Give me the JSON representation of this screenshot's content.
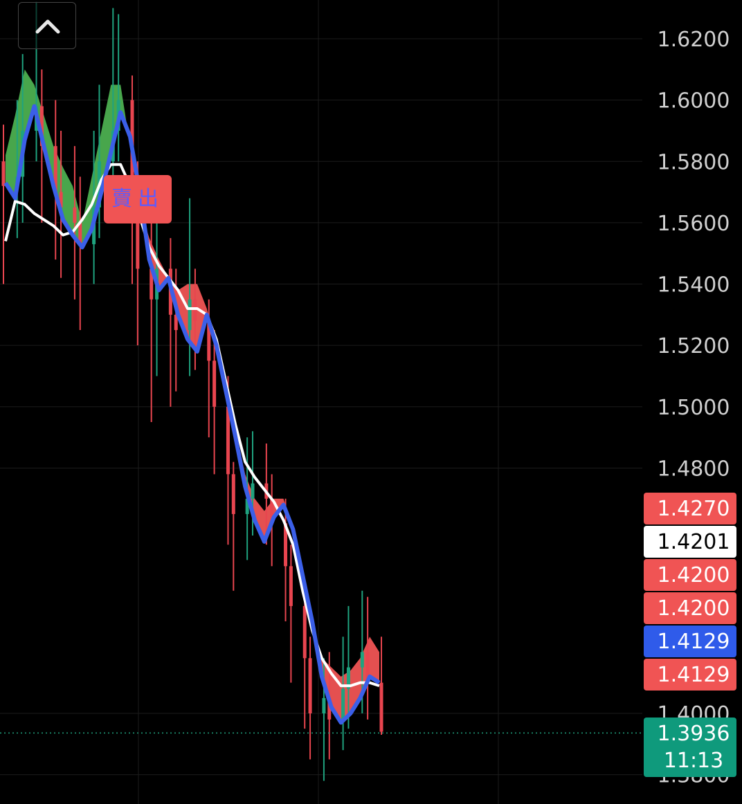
{
  "chart_data": {
    "type": "candlestick",
    "ylim": [
      1.375,
      1.632
    ],
    "y_ticks": [
      "1.6200",
      "1.6000",
      "1.5800",
      "1.5600",
      "1.5400",
      "1.5200",
      "1.5000",
      "1.4800",
      "1.4000",
      "1.3800"
    ],
    "grid": true,
    "signal": {
      "label": "賣出",
      "value": 1.565
    },
    "price_badges": [
      {
        "value": "1.4270",
        "bg": "#f05454",
        "fg": "#ffffff"
      },
      {
        "value": "1.4201",
        "bg": "#ffffff",
        "fg": "#000000"
      },
      {
        "value": "1.4200",
        "bg": "#f05454",
        "fg": "#ffffff"
      },
      {
        "value": "1.4200",
        "bg": "#f05454",
        "fg": "#ffffff"
      },
      {
        "value": "1.4129",
        "bg": "#2f5bea",
        "fg": "#ffffff"
      },
      {
        "value": "1.4129",
        "bg": "#f05454",
        "fg": "#ffffff"
      }
    ],
    "last_price": {
      "value": "1.3936",
      "countdown": "11:13",
      "bg": "#0f9a7c"
    },
    "series": {
      "blue_line": [
        1.573,
        1.568,
        1.587,
        1.598,
        1.585,
        1.572,
        1.561,
        1.556,
        1.552,
        1.558,
        1.57,
        1.583,
        1.596,
        1.588,
        1.57,
        1.548,
        1.538,
        1.542,
        1.53,
        1.522,
        1.518,
        1.53,
        1.52,
        1.505,
        1.49,
        1.474,
        1.463,
        1.456,
        1.464,
        1.468,
        1.46,
        1.445,
        1.43,
        1.412,
        1.402,
        1.397,
        1.4,
        1.405,
        1.412,
        1.41
      ],
      "white_line": [
        1.554,
        1.567,
        1.566,
        1.563,
        1.561,
        1.559,
        1.556,
        1.557,
        1.561,
        1.566,
        1.574,
        1.579,
        1.579,
        1.572,
        1.562,
        1.552,
        1.546,
        1.542,
        1.538,
        1.532,
        1.532,
        1.53,
        1.522,
        1.508,
        1.494,
        1.482,
        1.477,
        1.473,
        1.469,
        1.463,
        1.455,
        1.44,
        1.427,
        1.418,
        1.413,
        1.409,
        1.409,
        1.41,
        1.41,
        1.409
      ],
      "band_top": [
        1.582,
        1.595,
        1.61,
        1.605,
        1.595,
        1.585,
        1.578,
        1.572,
        1.56,
        1.575,
        1.59,
        1.605,
        1.605,
        1.585,
        1.565,
        1.555,
        1.548,
        1.542,
        1.538,
        1.54,
        1.54,
        1.532,
        1.52,
        1.505,
        1.492,
        1.478,
        1.47,
        1.466,
        1.47,
        1.47,
        1.46,
        1.448,
        1.43,
        1.418,
        1.415,
        1.412,
        1.414,
        1.418,
        1.425,
        1.42
      ],
      "band_bottom_color_switch": 13
    },
    "candles": [
      [
        1.58,
        1.572,
        1.592,
        1.54
      ],
      [
        1.572,
        1.575,
        1.6,
        1.555
      ],
      [
        1.575,
        1.59,
        1.615,
        1.56
      ],
      [
        1.59,
        1.598,
        1.632,
        1.58
      ],
      [
        1.598,
        1.585,
        1.61,
        1.56
      ],
      [
        1.585,
        1.57,
        1.6,
        1.548
      ],
      [
        1.57,
        1.565,
        1.59,
        1.542
      ],
      [
        1.565,
        1.56,
        1.585,
        1.535
      ],
      [
        1.56,
        1.553,
        1.575,
        1.525
      ],
      [
        1.553,
        1.565,
        1.59,
        1.54
      ],
      [
        1.565,
        1.58,
        1.605,
        1.555
      ],
      [
        1.58,
        1.59,
        1.63,
        1.575
      ],
      [
        1.59,
        1.6,
        1.628,
        1.58
      ],
      [
        1.6,
        1.575,
        1.608,
        1.54
      ],
      [
        1.575,
        1.545,
        1.58,
        1.52
      ],
      [
        1.545,
        1.535,
        1.56,
        1.495
      ],
      [
        1.535,
        1.545,
        1.56,
        1.51
      ],
      [
        1.545,
        1.53,
        1.555,
        1.5
      ],
      [
        1.53,
        1.525,
        1.545,
        1.505
      ],
      [
        1.525,
        1.535,
        1.568,
        1.51
      ],
      [
        1.535,
        1.528,
        1.545,
        1.512
      ],
      [
        1.528,
        1.515,
        1.535,
        1.49
      ],
      [
        1.515,
        1.5,
        1.525,
        1.478
      ],
      [
        1.5,
        1.478,
        1.51,
        1.455
      ],
      [
        1.478,
        1.465,
        1.482,
        1.44
      ],
      [
        1.465,
        1.47,
        1.49,
        1.45
      ],
      [
        1.47,
        1.475,
        1.492,
        1.458
      ],
      [
        1.475,
        1.47,
        1.488,
        1.455
      ],
      [
        1.47,
        1.462,
        1.478,
        1.448
      ],
      [
        1.462,
        1.448,
        1.47,
        1.43
      ],
      [
        1.448,
        1.435,
        1.455,
        1.41
      ],
      [
        1.435,
        1.418,
        1.44,
        1.395
      ],
      [
        1.418,
        1.4,
        1.425,
        1.385
      ],
      [
        1.4,
        1.405,
        1.418,
        1.378
      ],
      [
        1.405,
        1.398,
        1.42,
        1.385
      ],
      [
        1.398,
        1.408,
        1.425,
        1.388
      ],
      [
        1.408,
        1.415,
        1.435,
        1.395
      ],
      [
        1.415,
        1.42,
        1.44,
        1.4
      ],
      [
        1.42,
        1.41,
        1.438,
        1.398
      ],
      [
        1.41,
        1.394,
        1.425,
        1.393
      ]
    ]
  },
  "ui": {
    "collapse_label": "^"
  }
}
